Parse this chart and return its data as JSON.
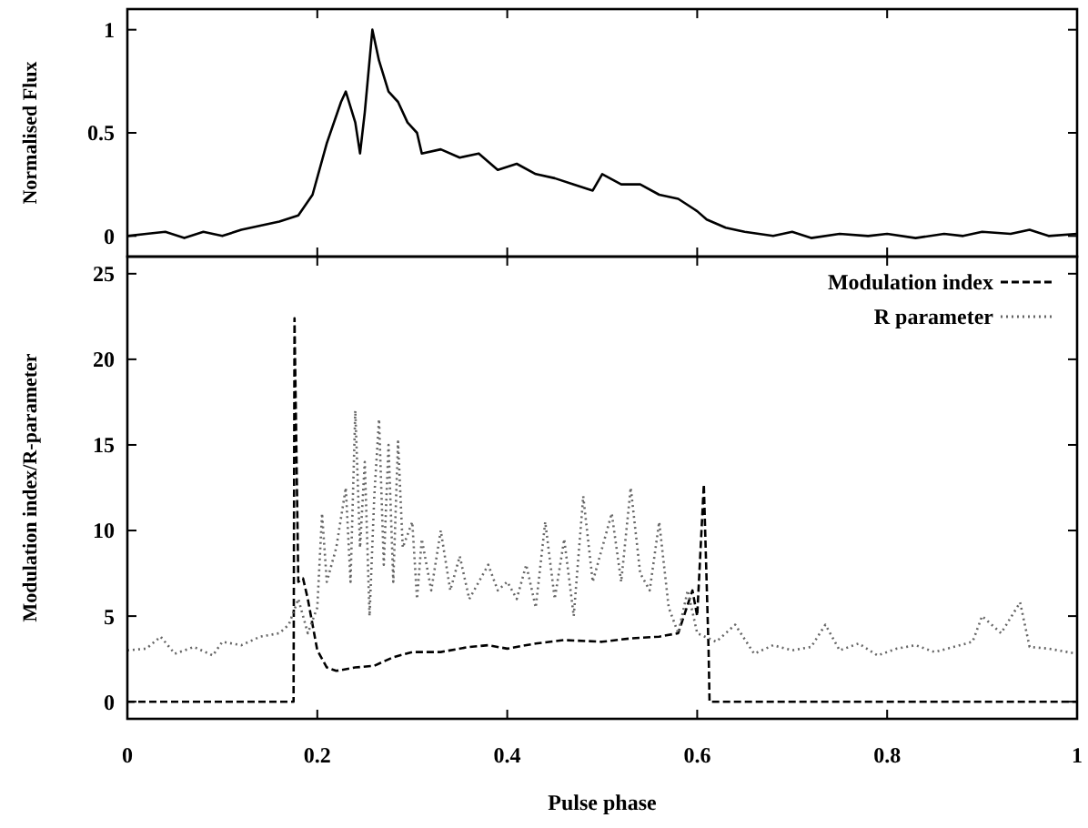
{
  "chart_data": [
    {
      "type": "line",
      "ylabel": "Normalised Flux",
      "xlim": [
        0,
        1
      ],
      "xticks": [
        0,
        0.2,
        0.4,
        0.6,
        0.8,
        1
      ],
      "ylim": [
        -0.1,
        1.1
      ],
      "yticks": [
        0,
        0.5,
        1
      ],
      "tick_labels": "y",
      "grid": false,
      "legend": false,
      "series": [
        {
          "color": "#000000",
          "line_style": "solid",
          "x": [
            0,
            0.02,
            0.04,
            0.06,
            0.08,
            0.1,
            0.12,
            0.14,
            0.16,
            0.18,
            0.195,
            0.21,
            0.225,
            0.23,
            0.24,
            0.245,
            0.25,
            0.255,
            0.258,
            0.265,
            0.275,
            0.285,
            0.295,
            0.305,
            0.31,
            0.33,
            0.35,
            0.37,
            0.39,
            0.41,
            0.43,
            0.45,
            0.47,
            0.49,
            0.5,
            0.52,
            0.54,
            0.56,
            0.58,
            0.6,
            0.61,
            0.63,
            0.65,
            0.68,
            0.7,
            0.72,
            0.75,
            0.78,
            0.8,
            0.83,
            0.86,
            0.88,
            0.9,
            0.93,
            0.95,
            0.97,
            1
          ],
          "values": [
            0,
            0.01,
            0.02,
            -0.01,
            0.02,
            0,
            0.03,
            0.05,
            0.07,
            0.1,
            0.2,
            0.45,
            0.65,
            0.7,
            0.55,
            0.4,
            0.6,
            0.85,
            1,
            0.85,
            0.7,
            0.65,
            0.55,
            0.5,
            0.4,
            0.42,
            0.38,
            0.4,
            0.32,
            0.35,
            0.3,
            0.28,
            0.25,
            0.22,
            0.3,
            0.25,
            0.25,
            0.2,
            0.18,
            0.12,
            0.08,
            0.04,
            0.02,
            0,
            0.02,
            -0.01,
            0.01,
            0,
            0.01,
            -0.01,
            0.01,
            0,
            0.02,
            0.01,
            0.03,
            0,
            0.01
          ]
        }
      ]
    },
    {
      "type": "line",
      "xlabel": "Pulse phase",
      "ylabel": "Modulation index/R-parameter",
      "xlim": [
        0,
        1
      ],
      "xticks": [
        0,
        0.2,
        0.4,
        0.6,
        0.8,
        1
      ],
      "ylim": [
        -1,
        26
      ],
      "yticks": [
        0,
        5,
        10,
        15,
        20,
        25
      ],
      "grid": false,
      "legend": "top right",
      "series": [
        {
          "name": "Modulation index",
          "color": "#000000",
          "line_style": "dashed",
          "x": [
            0,
            0.175,
            0.176,
            0.18,
            0.185,
            0.19,
            0.2,
            0.21,
            0.22,
            0.24,
            0.26,
            0.28,
            0.3,
            0.33,
            0.36,
            0.38,
            0.4,
            0.43,
            0.46,
            0.5,
            0.53,
            0.56,
            0.58,
            0.595,
            0.6,
            0.607,
            0.612,
            0.613,
            1
          ],
          "values": [
            0,
            0,
            22.4,
            7,
            7.2,
            6,
            3,
            2,
            1.8,
            2,
            2.1,
            2.6,
            2.9,
            2.9,
            3.2,
            3.3,
            3.1,
            3.4,
            3.6,
            3.5,
            3.7,
            3.8,
            4,
            6.5,
            5,
            12.7,
            3,
            0,
            0
          ]
        },
        {
          "name": "R parameter",
          "color": "#666666",
          "line_style": "dotted",
          "x": [
            0,
            0.02,
            0.035,
            0.05,
            0.07,
            0.09,
            0.1,
            0.12,
            0.14,
            0.16,
            0.17,
            0.18,
            0.19,
            0.2,
            0.205,
            0.21,
            0.22,
            0.23,
            0.235,
            0.24,
            0.245,
            0.25,
            0.255,
            0.26,
            0.265,
            0.27,
            0.275,
            0.28,
            0.285,
            0.29,
            0.3,
            0.305,
            0.31,
            0.32,
            0.33,
            0.34,
            0.35,
            0.36,
            0.37,
            0.38,
            0.39,
            0.4,
            0.41,
            0.42,
            0.43,
            0.44,
            0.45,
            0.46,
            0.47,
            0.48,
            0.49,
            0.5,
            0.51,
            0.52,
            0.53,
            0.54,
            0.55,
            0.56,
            0.57,
            0.58,
            0.59,
            0.6,
            0.62,
            0.64,
            0.66,
            0.68,
            0.7,
            0.72,
            0.735,
            0.75,
            0.77,
            0.79,
            0.81,
            0.83,
            0.85,
            0.87,
            0.89,
            0.9,
            0.92,
            0.94,
            0.95,
            0.97,
            1
          ],
          "values": [
            3,
            3.1,
            3.8,
            2.8,
            3.2,
            2.7,
            3.5,
            3.3,
            3.8,
            4,
            4.5,
            6,
            4,
            5.5,
            11,
            7,
            9,
            12.5,
            7,
            17,
            9,
            14,
            5,
            12,
            16.5,
            8,
            15,
            7,
            15.2,
            9,
            10.5,
            6,
            9.5,
            6.5,
            10,
            6.5,
            8.5,
            6,
            7,
            8,
            6.5,
            7,
            6,
            8,
            5.5,
            10.5,
            6,
            9.5,
            5,
            12,
            7,
            9,
            11,
            7,
            12.5,
            7.5,
            6.5,
            10.5,
            5.5,
            4,
            6.5,
            4,
            3.5,
            4.5,
            2.8,
            3.3,
            3,
            3.2,
            4.5,
            3,
            3.4,
            2.7,
            3.1,
            3.3,
            2.9,
            3.2,
            3.5,
            5,
            4,
            5.8,
            3.2,
            3.1,
            2.8
          ]
        }
      ]
    }
  ]
}
